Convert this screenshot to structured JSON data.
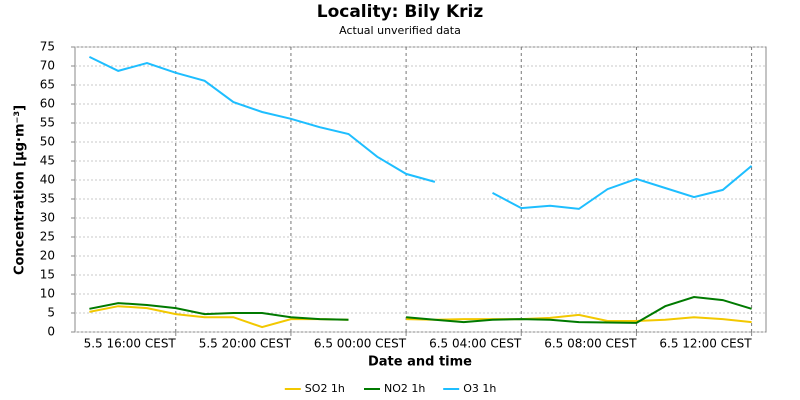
{
  "chart_data": {
    "type": "line",
    "title": "Locality: Bily Kriz",
    "subtitle": "Actual unverified data",
    "x_label": "Date and time",
    "y_label": "Concentration [µg·m⁻³]",
    "x": [
      "5.5 13:00 CEST",
      "5.5 14:00 CEST",
      "5.5 15:00 CEST",
      "5.5 16:00 CEST",
      "5.5 17:00 CEST",
      "5.5 18:00 CEST",
      "5.5 19:00 CEST",
      "5.5 20:00 CEST",
      "5.5 21:00 CEST",
      "5.5 22:00 CEST",
      "5.5 23:00 CEST",
      "6.5 00:00 CEST",
      "6.5 01:00 CEST",
      "6.5 02:00 CEST",
      "6.5 03:00 CEST",
      "6.5 04:00 CEST",
      "6.5 05:00 CEST",
      "6.5 06:00 CEST",
      "6.5 07:00 CEST",
      "6.5 08:00 CEST",
      "6.5 09:00 CEST",
      "6.5 10:00 CEST",
      "6.5 11:00 CEST",
      "6.5 12:00 CEST"
    ],
    "xlim": [
      "5.5 12:30 CEST",
      "6.5 12:30 CEST"
    ],
    "xticks": [
      "5.5 16:00 CEST",
      "5.5 20:00 CEST",
      "6.5 00:00 CEST",
      "6.5 04:00 CEST",
      "6.5 08:00 CEST",
      "6.5 12:00 CEST"
    ],
    "ylim": [
      0,
      75
    ],
    "yticks": [
      0,
      5,
      10,
      15,
      20,
      25,
      30,
      35,
      40,
      45,
      50,
      55,
      60,
      65,
      70,
      75
    ],
    "grid": true,
    "legend": "bottom",
    "series": [
      {
        "name": "SO2 1h",
        "color": "#f2c800",
        "values": [
          5.3,
          6.8,
          6.3,
          4.7,
          3.9,
          3.9,
          1.3,
          3.4,
          3.4,
          3.2,
          null,
          3.4,
          3.2,
          3.4,
          3.4,
          3.4,
          3.7,
          4.5,
          2.9,
          2.9,
          3.2,
          3.9,
          3.4,
          2.6
        ]
      },
      {
        "name": "NO2 1h",
        "color": "#007a00",
        "values": [
          6.1,
          7.6,
          7.1,
          6.3,
          4.7,
          5.0,
          5.0,
          3.9,
          3.4,
          3.2,
          null,
          3.9,
          3.2,
          2.6,
          3.2,
          3.4,
          3.2,
          2.6,
          2.5,
          2.4,
          6.8,
          9.2,
          8.4,
          6.1
        ]
      },
      {
        "name": "O3 1h",
        "color": "#1ebeff",
        "values": [
          72.4,
          68.7,
          70.8,
          68.2,
          66.1,
          60.5,
          57.9,
          56.1,
          53.9,
          52.1,
          46.1,
          41.6,
          39.5,
          null,
          36.6,
          32.6,
          33.2,
          32.4,
          37.6,
          40.3,
          37.9,
          35.5,
          37.4,
          43.7
        ]
      }
    ]
  }
}
